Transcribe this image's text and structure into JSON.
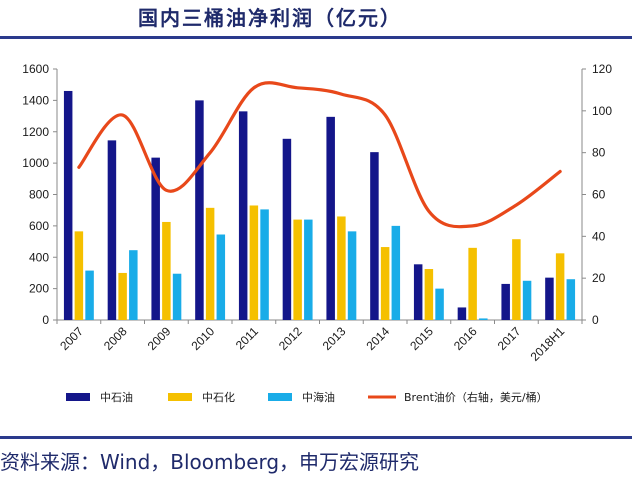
{
  "title": "国内三桶油净利润（亿元）",
  "source": "资料来源：Wind，Bloomberg，申万宏源研究",
  "chart_data": {
    "type": "bar",
    "categories": [
      "2007",
      "2008",
      "2009",
      "2010",
      "2011",
      "2012",
      "2013",
      "2014",
      "2015",
      "2016",
      "2017",
      "2018H1"
    ],
    "series": [
      {
        "name": "中石油",
        "color": "#14168a",
        "values": [
          1460,
          1145,
          1035,
          1400,
          1330,
          1155,
          1295,
          1070,
          355,
          80,
          230,
          270
        ]
      },
      {
        "name": "中石化",
        "color": "#f5c000",
        "values": [
          565,
          300,
          625,
          715,
          730,
          640,
          660,
          465,
          325,
          460,
          515,
          425
        ]
      },
      {
        "name": "中海油",
        "color": "#19ace8",
        "values": [
          315,
          445,
          295,
          545,
          705,
          640,
          565,
          600,
          200,
          10,
          250,
          260
        ]
      }
    ],
    "line": {
      "name": "Brent油价（右轴，美元/桶）",
      "color": "#e8481a",
      "values": [
        73,
        98,
        62,
        80,
        111,
        111,
        108,
        98,
        52,
        45,
        55,
        71
      ]
    },
    "ylim": [
      0,
      1600
    ],
    "yticks": [
      0,
      200,
      400,
      600,
      800,
      1000,
      1200,
      1400,
      1600
    ],
    "y2lim": [
      0,
      120
    ],
    "y2ticks": [
      0,
      20,
      40,
      60,
      80,
      100,
      120
    ],
    "legend_position": "bottom"
  }
}
